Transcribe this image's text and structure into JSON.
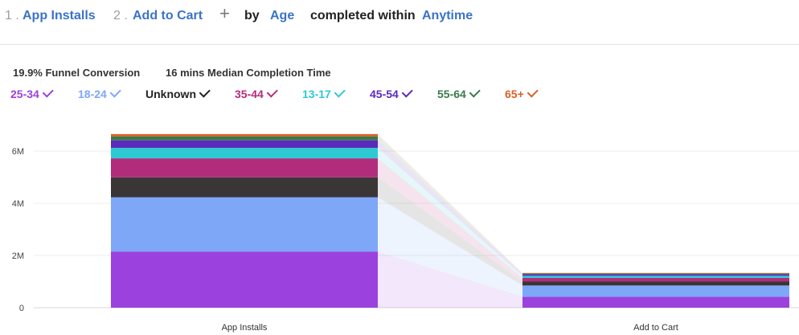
{
  "query": {
    "step1_num": "1 .",
    "step1_label": "App Installs",
    "step2_num": "2 .",
    "step2_label": "Add to Cart",
    "add_symbol": "+",
    "by_label": "by",
    "breakdown": "Age",
    "completed_label": "completed within",
    "window": "Anytime"
  },
  "summary": {
    "conversion": "19.9% Funnel Conversion",
    "median_time": "16 mins Median Completion Time"
  },
  "legend": [
    {
      "label": "25-34",
      "color": "#9b42de"
    },
    {
      "label": "18-24",
      "color": "#7ea7f8"
    },
    {
      "label": "Unknown",
      "color": "#222222"
    },
    {
      "label": "35-44",
      "color": "#b12d7c"
    },
    {
      "label": "13-17",
      "color": "#2ec9d2"
    },
    {
      "label": "45-54",
      "color": "#5a2bbd"
    },
    {
      "label": "55-64",
      "color": "#3a7a4a"
    },
    {
      "label": "65+",
      "color": "#d9602a"
    }
  ],
  "chart_data": {
    "type": "bar",
    "stacked": true,
    "categories": [
      "App Installs",
      "Add to Cart"
    ],
    "y_ticks": [
      "0",
      "2M",
      "4M",
      "6M"
    ],
    "ylim": [
      0,
      6700000
    ],
    "grid": true,
    "series": [
      {
        "name": "25-34",
        "color": "#9b42de",
        "values": [
          2150000,
          420000
        ]
      },
      {
        "name": "18-24",
        "color": "#7ea7f8",
        "values": [
          2080000,
          430000
        ]
      },
      {
        "name": "Unknown",
        "color": "#3a3636",
        "values": [
          760000,
          150000
        ]
      },
      {
        "name": "35-44",
        "color": "#b12d7c",
        "values": [
          730000,
          140000
        ]
      },
      {
        "name": "13-17",
        "color": "#2ec9d2",
        "values": [
          400000,
          80000
        ]
      },
      {
        "name": "45-54",
        "color": "#5a2bbd",
        "values": [
          290000,
          60000
        ]
      },
      {
        "name": "55-64",
        "color": "#3a7a4a",
        "values": [
          150000,
          30000
        ]
      },
      {
        "name": "65+",
        "color": "#d9602a",
        "values": [
          90000,
          20000
        ]
      }
    ]
  }
}
